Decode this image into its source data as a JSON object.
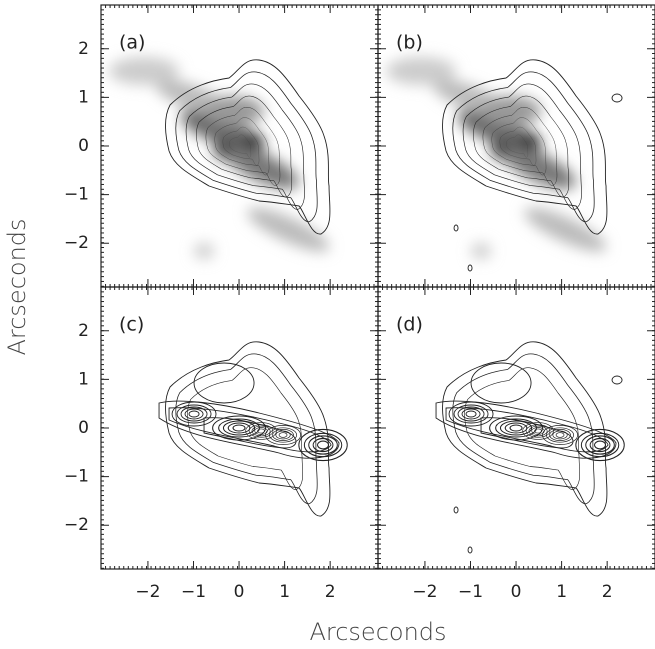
{
  "chart_data": {
    "type": "image",
    "xlabel": "Arcseconds",
    "ylabel": "Arcseconds",
    "xlim": [
      -3.03,
      3.05
    ],
    "ylim": [
      -2.9,
      2.9
    ],
    "xticks": [
      {
        "value": -2,
        "label": "−2"
      },
      {
        "value": -1,
        "label": "−1"
      },
      0,
      1,
      2
    ],
    "yticks": [
      {
        "value": -2,
        "label": "−2"
      },
      {
        "value": -1,
        "label": "−1"
      },
      0,
      1,
      2
    ],
    "panels": [
      {
        "label": "(a)"
      },
      {
        "label": "(b)"
      },
      {
        "label": "(c)"
      },
      {
        "label": "(d)"
      }
    ]
  }
}
